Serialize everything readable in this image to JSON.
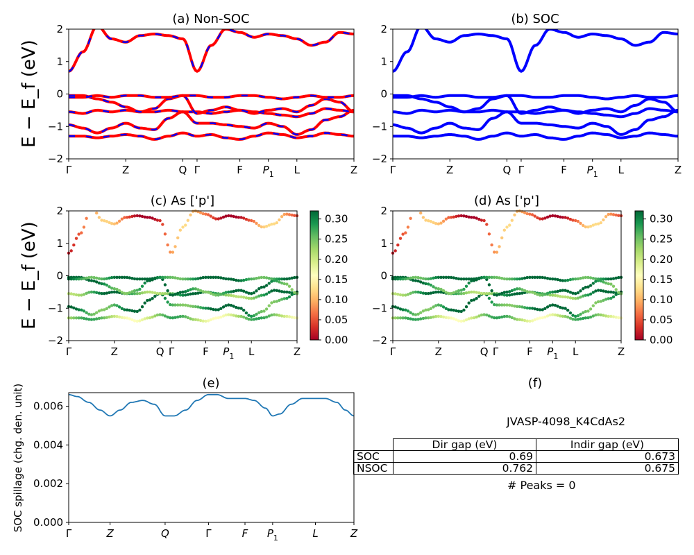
{
  "figure": {
    "ylabel": "E − E_f (eV)",
    "panel_titles": {
      "a": "(a) Non-SOC",
      "b": "(b) SOC",
      "c": "(c)  As ['p']",
      "d": "(d) As ['p']",
      "e": "(e)",
      "f": "(f)"
    },
    "kpath_labels": [
      "Γ",
      "Z",
      "Q",
      "Γ",
      "F",
      "P1",
      "L",
      "Z"
    ],
    "spillage_ylabel": "SOC spillage (chg. den. unit)",
    "colorbar_ticks": [
      "0.00",
      "0.05",
      "0.10",
      "0.15",
      "0.20",
      "0.25",
      "0.30"
    ],
    "colors": {
      "nsoc": "#ff0000",
      "soc": "#0000ff",
      "spillage": "#1f77b4",
      "colormap": [
        "#a50026",
        "#d73027",
        "#f46d43",
        "#fdae61",
        "#fee08b",
        "#ffffbf",
        "#d9ef8b",
        "#a6d96a",
        "#66bd63",
        "#1a9850",
        "#006837"
      ]
    }
  },
  "info": {
    "material": "JVASP-4098_K4CdAs2",
    "table_headers": [
      "Dir gap (eV)",
      "Indir gap (eV)"
    ],
    "rows": [
      {
        "label": "SOC",
        "dir": "0.69",
        "indir": "0.673"
      },
      {
        "label": "NSOC",
        "dir": "0.762",
        "indir": "0.675"
      }
    ],
    "peaks": "# Peaks = 0"
  },
  "chart_data": [
    {
      "type": "line",
      "title": "(a) Non-SOC",
      "ylabel": "E − E_f (eV)",
      "ylim": [
        -2,
        2
      ],
      "yticks": [
        -2,
        -1,
        0,
        1,
        2
      ],
      "xticks": [
        "Γ",
        "Z",
        "Q",
        "Γ",
        "F",
        "P1",
        "L",
        "Z"
      ],
      "xtick_positions": [
        0,
        0.2,
        0.4,
        0.45,
        0.6,
        0.7,
        0.8,
        1.0
      ],
      "series": [
        {
          "name": "NSOC",
          "x": [
            0,
            0.05,
            0.1,
            0.15,
            0.2,
            0.25,
            0.3,
            0.35,
            0.4,
            0.45,
            0.5,
            0.55,
            0.6,
            0.65,
            0.7,
            0.75,
            0.8,
            0.85,
            0.9,
            0.95,
            1.0
          ],
          "bands": [
            [
              -1.3,
              -1.3,
              -1.35,
              -1.3,
              -1.25,
              -1.3,
              -1.4,
              -1.3,
              -1.2,
              -1.3,
              -1.25,
              -1.35,
              -1.4,
              -1.3,
              -1.2,
              -1.25,
              -1.35,
              -1.3,
              -1.2,
              -1.25,
              -1.3
            ],
            [
              -0.95,
              -1.05,
              -1.2,
              -1.05,
              -0.9,
              -1.05,
              -1.1,
              -0.75,
              -0.55,
              -0.9,
              -0.9,
              -0.95,
              -1.0,
              -1.05,
              -0.9,
              -1.0,
              -1.25,
              -1.1,
              -0.8,
              -0.7,
              -0.5
            ],
            [
              -0.55,
              -0.6,
              -0.5,
              -0.55,
              -0.5,
              -0.55,
              -0.55,
              -0.5,
              -0.55,
              -0.55,
              -0.6,
              -0.55,
              -0.5,
              -0.55,
              -0.6,
              -0.65,
              -0.7,
              -0.6,
              -0.45,
              -0.5,
              -0.55
            ],
            [
              -0.05,
              -0.05,
              -0.15,
              -0.25,
              -0.4,
              -0.55,
              -0.45,
              -0.15,
              -0.05,
              -0.6,
              -0.5,
              -0.4,
              -0.5,
              -0.6,
              -0.5,
              -0.45,
              -0.55,
              -0.35,
              -0.15,
              -0.25,
              -0.55
            ],
            [
              -0.1,
              -0.1,
              -0.05,
              -0.1,
              -0.05,
              -0.05,
              -0.1,
              -0.1,
              -0.05,
              -0.05,
              -0.1,
              -0.1,
              -0.05,
              -0.05,
              -0.1,
              -0.15,
              -0.1,
              -0.05,
              -0.1,
              -0.1,
              -0.05
            ],
            [
              0.7,
              1.3,
              2.1,
              1.7,
              1.6,
              1.8,
              1.85,
              1.8,
              1.7,
              0.7,
              1.5,
              2.0,
              1.9,
              1.75,
              1.85,
              1.8,
              1.7,
              1.5,
              1.6,
              1.9,
              1.85
            ]
          ]
        }
      ]
    },
    {
      "type": "line",
      "title": "(b) SOC",
      "ylim": [
        -2,
        2
      ],
      "yticks": [
        -2,
        -1,
        0,
        1,
        2
      ],
      "xticks": [
        "Γ",
        "Z",
        "Q",
        "Γ",
        "F",
        "P1",
        "L",
        "Z"
      ],
      "xtick_positions": [
        0,
        0.2,
        0.4,
        0.45,
        0.6,
        0.7,
        0.8,
        1.0
      ],
      "series": [
        {
          "name": "SOC",
          "x": [
            0,
            0.05,
            0.1,
            0.15,
            0.2,
            0.25,
            0.3,
            0.35,
            0.4,
            0.45,
            0.5,
            0.55,
            0.6,
            0.65,
            0.7,
            0.75,
            0.8,
            0.85,
            0.9,
            0.95,
            1.0
          ],
          "bands": [
            [
              -1.3,
              -1.3,
              -1.35,
              -1.3,
              -1.25,
              -1.3,
              -1.4,
              -1.3,
              -1.2,
              -1.3,
              -1.25,
              -1.35,
              -1.4,
              -1.3,
              -1.2,
              -1.25,
              -1.35,
              -1.3,
              -1.2,
              -1.25,
              -1.3
            ],
            [
              -0.95,
              -1.05,
              -1.2,
              -1.05,
              -0.9,
              -1.05,
              -1.1,
              -0.75,
              -0.55,
              -0.9,
              -0.9,
              -0.95,
              -1.0,
              -1.05,
              -0.9,
              -1.0,
              -1.25,
              -1.1,
              -0.8,
              -0.7,
              -0.5
            ],
            [
              -0.55,
              -0.6,
              -0.5,
              -0.55,
              -0.5,
              -0.55,
              -0.55,
              -0.5,
              -0.55,
              -0.55,
              -0.6,
              -0.55,
              -0.5,
              -0.55,
              -0.6,
              -0.65,
              -0.7,
              -0.6,
              -0.45,
              -0.5,
              -0.55
            ],
            [
              -0.05,
              -0.05,
              -0.15,
              -0.25,
              -0.4,
              -0.55,
              -0.45,
              -0.15,
              -0.05,
              -0.6,
              -0.5,
              -0.4,
              -0.5,
              -0.6,
              -0.5,
              -0.45,
              -0.55,
              -0.35,
              -0.15,
              -0.25,
              -0.55
            ],
            [
              -0.1,
              -0.1,
              -0.05,
              -0.1,
              -0.05,
              -0.05,
              -0.1,
              -0.1,
              -0.05,
              -0.05,
              -0.1,
              -0.1,
              -0.05,
              -0.05,
              -0.1,
              -0.15,
              -0.1,
              -0.05,
              -0.1,
              -0.1,
              -0.05
            ],
            [
              0.7,
              1.3,
              2.1,
              1.7,
              1.6,
              1.8,
              1.85,
              1.8,
              1.7,
              0.7,
              1.5,
              2.0,
              1.9,
              1.75,
              1.85,
              1.8,
              1.7,
              1.5,
              1.6,
              1.9,
              1.85
            ]
          ]
        }
      ]
    },
    {
      "type": "scatter",
      "title": "(c)  As ['p']",
      "ylabel": "E − E_f (eV)",
      "ylim": [
        -2,
        2
      ],
      "xticks": [
        "Γ",
        "Z",
        "Q",
        "Γ",
        "F",
        "P1",
        "L",
        "Z"
      ],
      "colorbar_range": [
        0,
        0.32
      ],
      "band_weights": [
        0.22,
        0.3,
        0.27,
        0.3,
        0.31,
        0.07
      ]
    },
    {
      "type": "scatter",
      "title": "(d) As ['p']",
      "ylim": [
        -2,
        2
      ],
      "xticks": [
        "Γ",
        "Z",
        "Q",
        "Γ",
        "F",
        "P1",
        "L",
        "Z"
      ],
      "colorbar_range": [
        0,
        0.32
      ],
      "band_weights": [
        0.22,
        0.3,
        0.27,
        0.3,
        0.31,
        0.07
      ]
    },
    {
      "type": "line",
      "title": "(e)",
      "ylabel": "SOC spillage (chg. den. unit)",
      "ylim": [
        0,
        0.0067
      ],
      "yticks": [
        0.0,
        0.002,
        0.004,
        0.006
      ],
      "yticklabels": [
        "0.000",
        "0.002",
        "0.004",
        "0.006"
      ],
      "xticks": [
        "Γ",
        "Z",
        "Q",
        "Γ",
        "F",
        "P1",
        "L",
        "Z"
      ],
      "xtick_positions": [
        0,
        0.145,
        0.338,
        0.49,
        0.618,
        0.715,
        0.865,
        1.0
      ],
      "series": [
        {
          "name": "spillage",
          "x": [
            0,
            0.03,
            0.07,
            0.11,
            0.145,
            0.18,
            0.22,
            0.26,
            0.3,
            0.338,
            0.37,
            0.41,
            0.45,
            0.49,
            0.52,
            0.56,
            0.6,
            0.618,
            0.65,
            0.69,
            0.715,
            0.74,
            0.78,
            0.82,
            0.865,
            0.9,
            0.94,
            0.97,
            1.0
          ],
          "y": [
            0.0066,
            0.0065,
            0.0062,
            0.0058,
            0.0055,
            0.0058,
            0.0062,
            0.0063,
            0.0061,
            0.0055,
            0.0055,
            0.0058,
            0.0063,
            0.0066,
            0.0066,
            0.0064,
            0.0064,
            0.0064,
            0.0063,
            0.0059,
            0.0055,
            0.0056,
            0.0061,
            0.0064,
            0.0064,
            0.0064,
            0.0062,
            0.0058,
            0.0055
          ]
        }
      ]
    }
  ]
}
